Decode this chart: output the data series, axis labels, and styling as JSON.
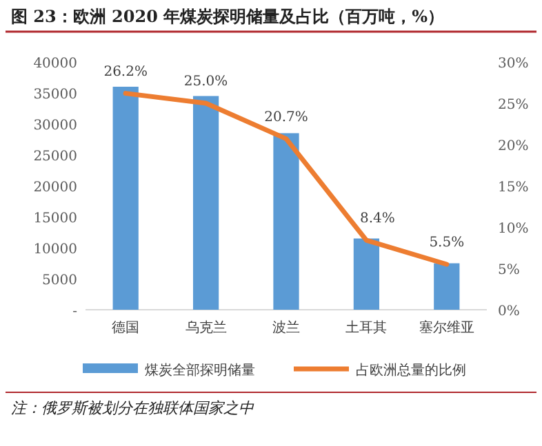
{
  "chart_data": {
    "type": "bar",
    "title": "图 23：欧洲 2020 年煤炭探明储量及占比（百万吨，%）",
    "categories": [
      "德国",
      "乌克兰",
      "波兰",
      "土耳其",
      "塞尔维亚"
    ],
    "series": [
      {
        "name": "煤炭全部探明储量",
        "color": "#5b9bd5",
        "values": [
          36000,
          34500,
          28500,
          11500,
          7500
        ]
      },
      {
        "name": "占欧洲总量的比例",
        "type": "line",
        "axis": "y2",
        "color": "#ed7d31",
        "values": [
          26.2,
          25.0,
          20.7,
          8.4,
          5.5
        ],
        "value_labels": [
          "26.2%",
          "25.0%",
          "20.7%",
          "8.4%",
          "5.5%"
        ]
      }
    ],
    "ylim": [
      0,
      40000
    ],
    "yticks": [
      {
        "value": 0,
        "label": "-"
      },
      5000,
      10000,
      15000,
      20000,
      25000,
      30000,
      35000,
      40000
    ],
    "y2lim": [
      0,
      30
    ],
    "y2ticks": [
      {
        "value": 0,
        "label": "0%"
      },
      {
        "value": 5,
        "label": "5%"
      },
      {
        "value": 10,
        "label": "10%"
      },
      {
        "value": 15,
        "label": "15%"
      },
      {
        "value": 20,
        "label": "20%"
      },
      {
        "value": 25,
        "label": "25%"
      },
      {
        "value": 30,
        "label": "30%"
      }
    ],
    "grid": false,
    "legend": "bottom",
    "marker": "none",
    "annotations": [
      "注：俄罗斯被划分在独联体国家之中"
    ]
  }
}
